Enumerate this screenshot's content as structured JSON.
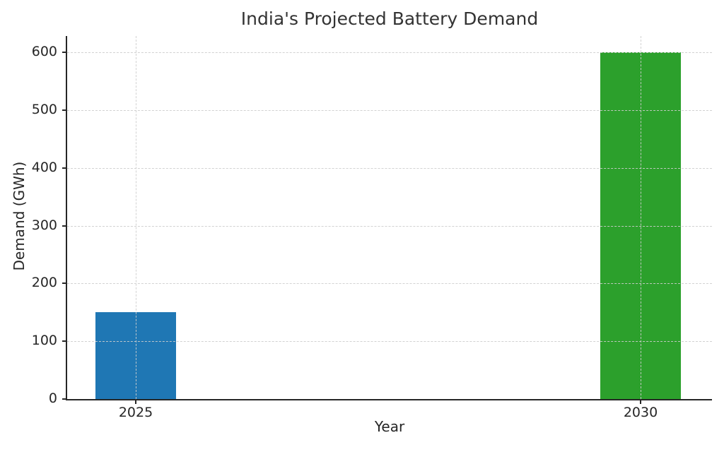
{
  "chart_data": {
    "type": "bar",
    "title": "India's Projected Battery Demand",
    "xlabel": "Year",
    "ylabel": "Demand (GWh)",
    "categories": [
      "2025",
      "2030"
    ],
    "values": [
      150,
      600
    ],
    "bar_colors": [
      "#1f77b4",
      "#2ca02c"
    ],
    "yticks": [
      0,
      100,
      200,
      300,
      400,
      500,
      600
    ],
    "ylim": [
      0,
      628
    ],
    "grid": "dashed horizontal and vertical gridlines, drawn above bars",
    "legend": "none",
    "spines": [
      "left",
      "bottom"
    ]
  }
}
